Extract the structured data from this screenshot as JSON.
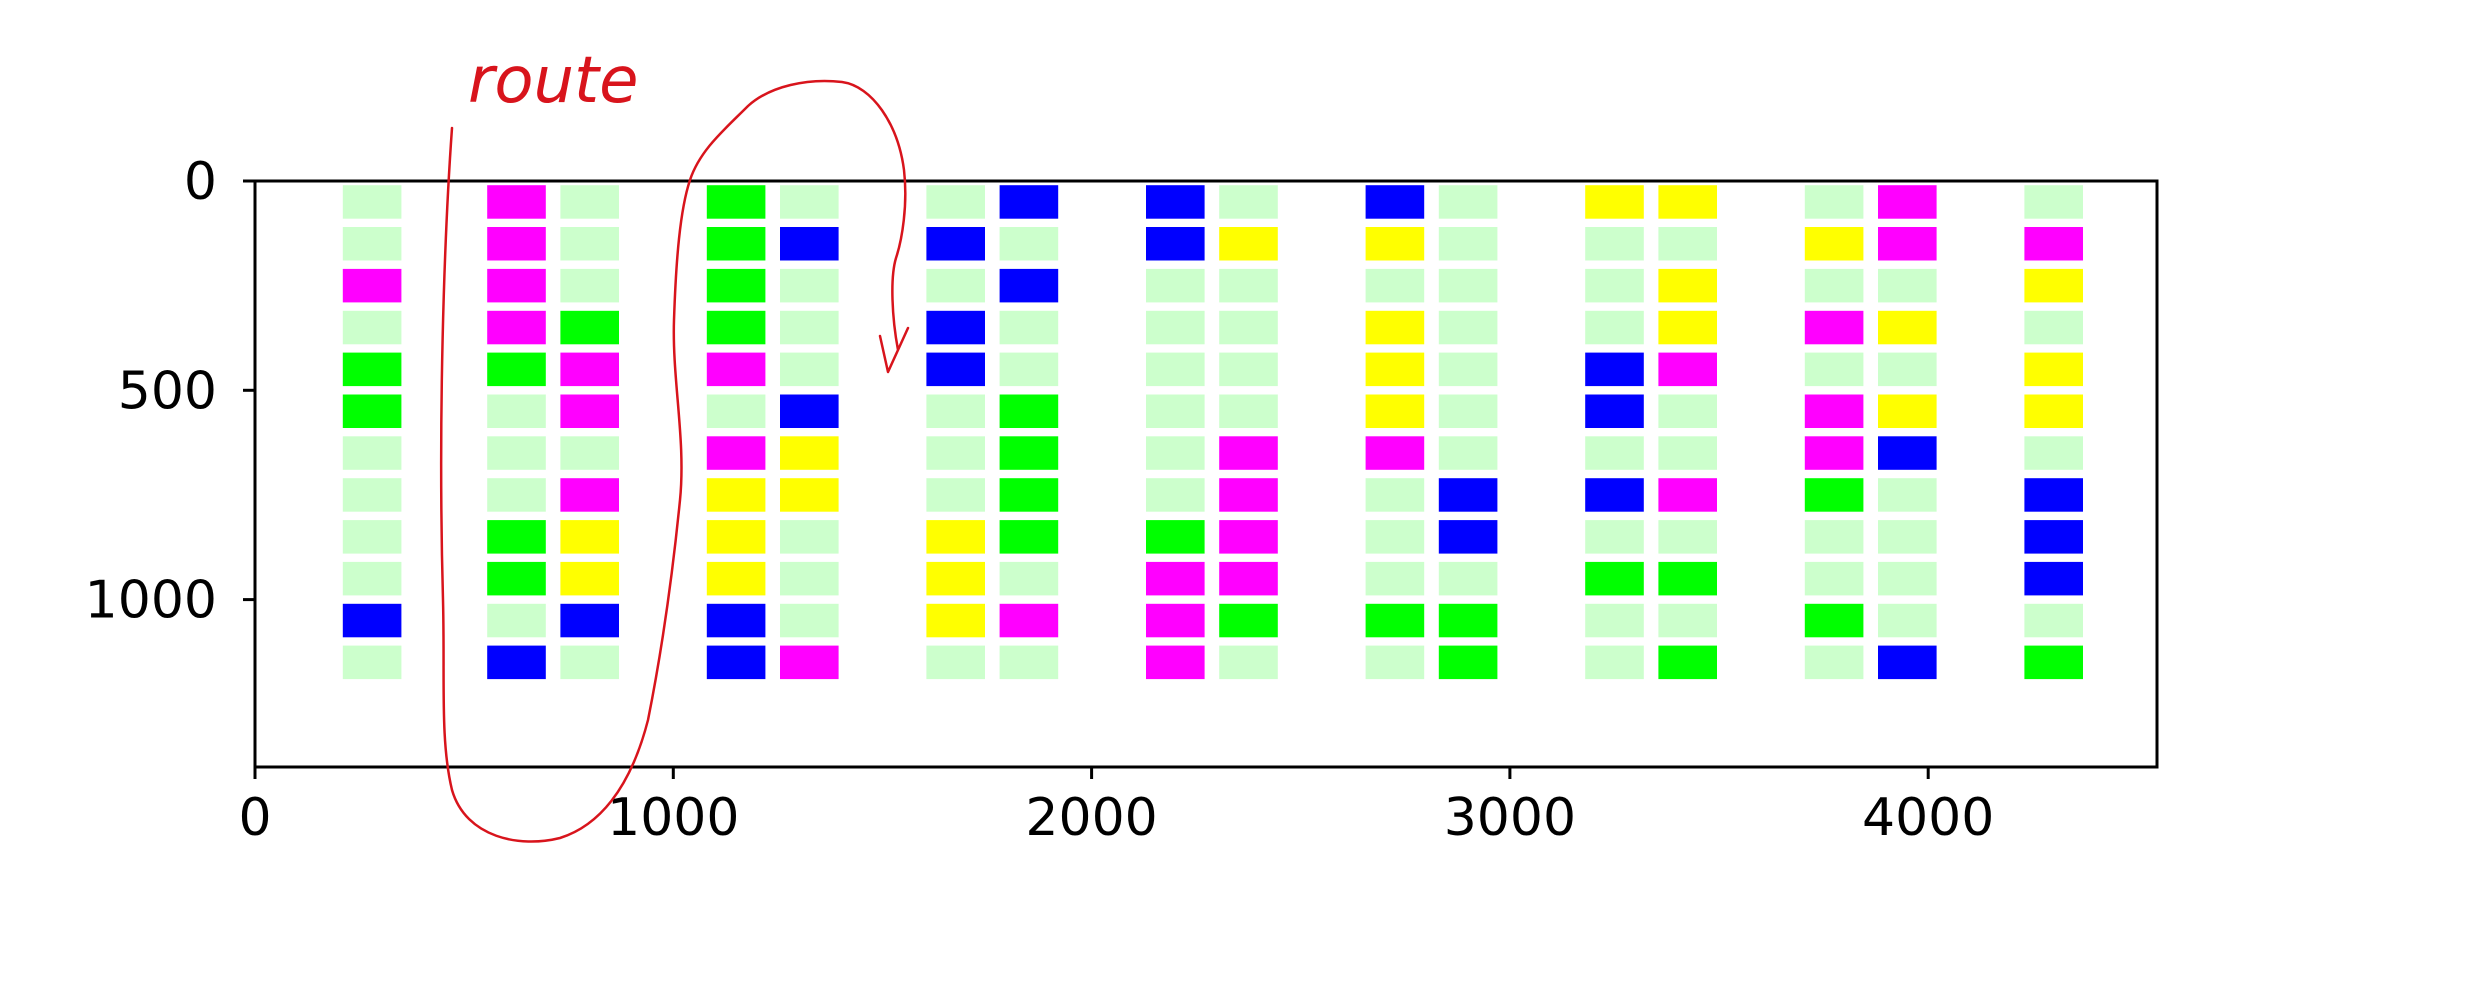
{
  "chart_data": {
    "type": "heatmap",
    "title": "",
    "xlabel": "",
    "ylabel": "",
    "xlim": [
      0,
      4550
    ],
    "ylim": [
      1400,
      0
    ],
    "x_ticks": [
      0,
      1000,
      2000,
      3000,
      4000
    ],
    "y_ticks": [
      0,
      500,
      1000
    ],
    "grid": false,
    "legend": "none",
    "cell_width": 140,
    "cell_height": 80,
    "row_y": [
      50,
      150,
      250,
      350,
      450,
      550,
      650,
      750,
      850,
      950,
      1050,
      1150
    ],
    "color_key": {
      "E": "#ccffcc",
      "M": "#ff00ff",
      "G": "#00ff00",
      "B": "#0000ff",
      "Y": "#ffff00"
    },
    "columns": [
      {
        "x": 210,
        "cells": [
          "E",
          "E",
          "M",
          "E",
          "G",
          "G",
          "E",
          "E",
          "E",
          "E",
          "B",
          "E"
        ]
      },
      {
        "x": 555,
        "cells": [
          "M",
          "M",
          "M",
          "M",
          "G",
          "E",
          "E",
          "E",
          "G",
          "G",
          "E",
          "B"
        ]
      },
      {
        "x": 730,
        "cells": [
          "E",
          "E",
          "E",
          "G",
          "M",
          "M",
          "E",
          "M",
          "Y",
          "Y",
          "B",
          "E"
        ]
      },
      {
        "x": 1080,
        "cells": [
          "G",
          "G",
          "G",
          "G",
          "M",
          "E",
          "M",
          "Y",
          "Y",
          "Y",
          "B",
          "B"
        ]
      },
      {
        "x": 1255,
        "cells": [
          "E",
          "B",
          "E",
          "E",
          "E",
          "B",
          "Y",
          "Y",
          "E",
          "E",
          "E",
          "M"
        ]
      },
      {
        "x": 1605,
        "cells": [
          "E",
          "B",
          "E",
          "B",
          "B",
          "E",
          "E",
          "E",
          "Y",
          "Y",
          "Y",
          "E"
        ]
      },
      {
        "x": 1780,
        "cells": [
          "B",
          "E",
          "B",
          "E",
          "E",
          "G",
          "G",
          "G",
          "G",
          "E",
          "M",
          "E"
        ]
      },
      {
        "x": 2130,
        "cells": [
          "B",
          "B",
          "E",
          "E",
          "E",
          "E",
          "E",
          "E",
          "G",
          "M",
          "M",
          "M"
        ]
      },
      {
        "x": 2305,
        "cells": [
          "E",
          "Y",
          "E",
          "E",
          "E",
          "E",
          "M",
          "M",
          "M",
          "M",
          "G",
          "E"
        ]
      },
      {
        "x": 2655,
        "cells": [
          "B",
          "Y",
          "E",
          "Y",
          "Y",
          "Y",
          "M",
          "E",
          "E",
          "E",
          "G",
          "E"
        ]
      },
      {
        "x": 2830,
        "cells": [
          "E",
          "E",
          "E",
          "E",
          "E",
          "E",
          "E",
          "B",
          "B",
          "E",
          "G",
          "G"
        ]
      },
      {
        "x": 3180,
        "cells": [
          "Y",
          "E",
          "E",
          "E",
          "B",
          "B",
          "E",
          "B",
          "E",
          "G",
          "E",
          "E"
        ]
      },
      {
        "x": 3355,
        "cells": [
          "Y",
          "E",
          "Y",
          "Y",
          "M",
          "E",
          "E",
          "M",
          "E",
          "G",
          "E",
          "G"
        ]
      },
      {
        "x": 3705,
        "cells": [
          "E",
          "Y",
          "E",
          "M",
          "E",
          "M",
          "M",
          "G",
          "E",
          "E",
          "G",
          "E"
        ]
      },
      {
        "x": 3880,
        "cells": [
          "M",
          "M",
          "E",
          "Y",
          "E",
          "Y",
          "B",
          "E",
          "E",
          "E",
          "E",
          "B"
        ]
      },
      {
        "x": 4230,
        "cells": [
          "E",
          "M",
          "Y",
          "E",
          "Y",
          "Y",
          "E",
          "B",
          "B",
          "B",
          "E",
          "G"
        ]
      }
    ],
    "annotation": {
      "text": "route",
      "color": "#d8141c"
    }
  }
}
